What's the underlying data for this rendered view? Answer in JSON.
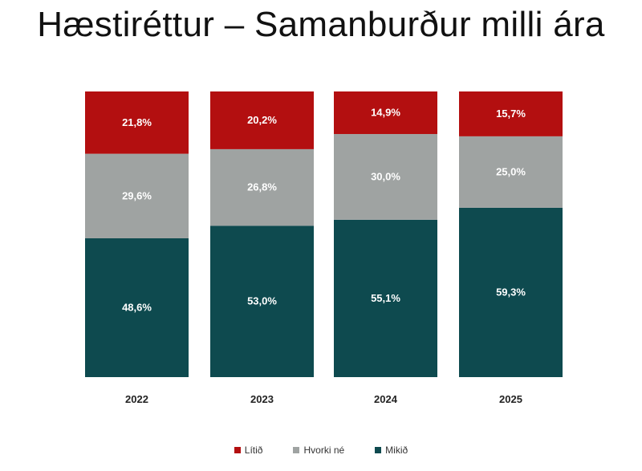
{
  "chart_data": {
    "type": "bar",
    "stacked": true,
    "title": "Hæstiréttur – Samanburður milli ára",
    "categories": [
      "2022",
      "2023",
      "2024",
      "2025"
    ],
    "series": [
      {
        "name": "Mikið",
        "color": "#0e4a4f",
        "values": [
          48.6,
          53.0,
          55.1,
          59.3
        ],
        "labels": [
          "48,6%",
          "53,0%",
          "55,1%",
          "59,3%"
        ]
      },
      {
        "name": "Hvorki né",
        "color": "#9fa3a2",
        "values": [
          29.6,
          26.8,
          30.0,
          25.0
        ],
        "labels": [
          "29,6%",
          "26,8%",
          "30,0%",
          "25,0%"
        ]
      },
      {
        "name": "Lítið",
        "color": "#b30f10",
        "values": [
          21.8,
          20.2,
          14.9,
          15.7
        ],
        "labels": [
          "21,8%",
          "20,2%",
          "14,9%",
          "15,7%"
        ]
      }
    ],
    "ylim": [
      0,
      100
    ],
    "grid": false,
    "legend_position": "bottom"
  }
}
